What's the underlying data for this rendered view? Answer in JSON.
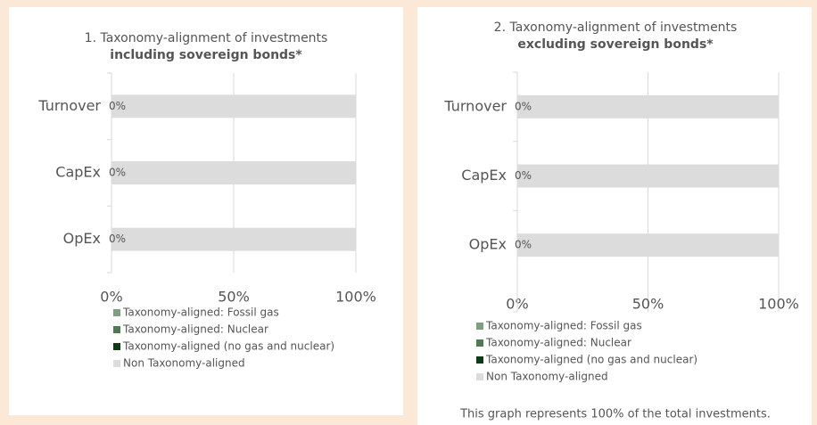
{
  "chart_data": [
    {
      "type": "bar",
      "orientation": "horizontal",
      "stacked": true,
      "title": "1. Taxonomy-alignment of investments",
      "subtitle": "including sovereign bonds*",
      "categories": [
        "Turnover",
        "CapEx",
        "OpEx"
      ],
      "series": [
        {
          "name": "Taxonomy-aligned: Fossil gas",
          "color": "#7f9f82",
          "values": [
            0,
            0,
            0
          ]
        },
        {
          "name": "Taxonomy-aligned: Nuclear",
          "color": "#4f7a52",
          "values": [
            0,
            0,
            0
          ]
        },
        {
          "name": "Taxonomy-aligned (no gas and nuclear)",
          "color": "#0f3a14",
          "values": [
            0,
            0,
            0
          ],
          "value_labels": [
            "0%",
            "0%",
            "0%"
          ]
        },
        {
          "name": "Non Taxonomy-aligned",
          "color": "#dcdcdc",
          "values": [
            100,
            100,
            100
          ]
        }
      ],
      "xlim": [
        0,
        100
      ],
      "xticks": [
        {
          "value": 0,
          "label": "0%"
        },
        {
          "value": 50,
          "label": "50%"
        },
        {
          "value": 100,
          "label": "100%"
        }
      ],
      "grid": true,
      "legend": "bottom"
    },
    {
      "type": "bar",
      "orientation": "horizontal",
      "stacked": true,
      "title": "2. Taxonomy-alignment of investments",
      "subtitle": "excluding sovereign bonds*",
      "categories": [
        "Turnover",
        "CapEx",
        "OpEx"
      ],
      "series": [
        {
          "name": "Taxonomy-aligned: Fossil gas",
          "color": "#7f9f82",
          "values": [
            0,
            0,
            0
          ]
        },
        {
          "name": "Taxonomy-aligned: Nuclear",
          "color": "#4f7a52",
          "values": [
            0,
            0,
            0
          ]
        },
        {
          "name": "Taxonomy-aligned (no gas and nuclear)",
          "color": "#0f3a14",
          "values": [
            0,
            0,
            0
          ],
          "value_labels": [
            "0%",
            "0%",
            "0%"
          ]
        },
        {
          "name": "Non Taxonomy-aligned",
          "color": "#dcdcdc",
          "values": [
            100,
            100,
            100
          ]
        }
      ],
      "xlim": [
        0,
        100
      ],
      "xticks": [
        {
          "value": 0,
          "label": "0%"
        },
        {
          "value": 50,
          "label": "50%"
        },
        {
          "value": 100,
          "label": "100%"
        }
      ],
      "grid": true,
      "legend": "bottom",
      "note": "This graph represents 100% of the total investments."
    }
  ]
}
